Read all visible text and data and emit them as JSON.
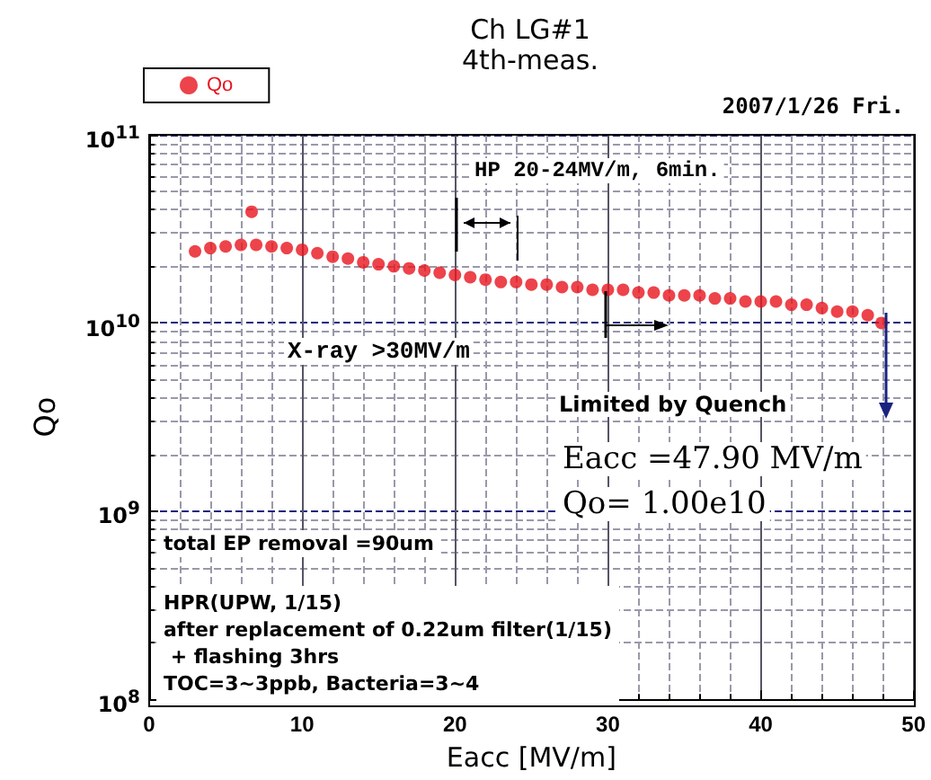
{
  "chart_data": {
    "type": "scatter",
    "title": "Ch LG#1",
    "subtitle": "4th-meas.",
    "xlabel": "Eacc [MV/m]",
    "ylabel": "Qo",
    "annotations": [
      "2007/1/26 Fri.",
      "HP 20-24MV/m, 6min.",
      "X-ray >30MV/m",
      "Limited by Quench",
      "Eacc =47.90 MV/m",
      "Qo= 1.00e10",
      "total EP removal =90um",
      "HPR(UPW, 1/15)\nafter replacement of 0.22um filter(1/15)\n + flashing 3hrs\nTOC=3~3ppb, Bacteria=3~4"
    ],
    "series": [
      {
        "name": "Qo",
        "color": "#e8141e",
        "x": [
          3,
          4,
          5,
          6,
          6.7,
          7,
          8,
          9,
          10,
          11,
          12,
          13,
          14,
          15,
          16,
          17,
          18,
          19,
          20,
          21,
          22,
          23,
          24,
          25,
          26,
          27,
          28,
          29,
          30,
          31,
          32,
          33,
          34,
          35,
          36,
          37,
          38,
          39,
          40,
          41,
          42,
          43,
          44,
          45,
          46,
          47,
          47.9
        ],
        "values": [
          24000000000.0,
          25000000000.0,
          25500000000.0,
          26000000000.0,
          39000000000.0,
          26000000000.0,
          25500000000.0,
          25000000000.0,
          24500000000.0,
          23500000000.0,
          22500000000.0,
          22000000000.0,
          21000000000.0,
          20500000000.0,
          20000000000.0,
          19500000000.0,
          19000000000.0,
          18500000000.0,
          18000000000.0,
          17500000000.0,
          17000000000.0,
          16500000000.0,
          16500000000.0,
          16000000000.0,
          16000000000.0,
          15500000000.0,
          15500000000.0,
          15000000000.0,
          15000000000.0,
          15000000000.0,
          14500000000.0,
          14500000000.0,
          14000000000.0,
          14000000000.0,
          14000000000.0,
          13500000000.0,
          13500000000.0,
          13000000000.0,
          13000000000.0,
          13000000000.0,
          12500000000.0,
          12500000000.0,
          12000000000.0,
          11500000000.0,
          11500000000.0,
          11000000000.0,
          10000000000.0
        ]
      }
    ],
    "xlim": [
      0,
      50
    ],
    "xticks": [
      0,
      10,
      20,
      30,
      40,
      50
    ],
    "ylim": [
      100000000.0,
      100000000000.0
    ],
    "yticks": [
      {
        "value": 100000000.0,
        "label": "10$^{8}$"
      },
      {
        "value": 1000000000.0,
        "label": "10$^{9}$"
      },
      {
        "value": 10000000000.0,
        "label": "10$^{10}$"
      },
      {
        "value": 100000000000.0,
        "label": "10$^{11}$"
      }
    ],
    "log": "y",
    "grid": true,
    "legend": "top left",
    "marker": "circle"
  }
}
